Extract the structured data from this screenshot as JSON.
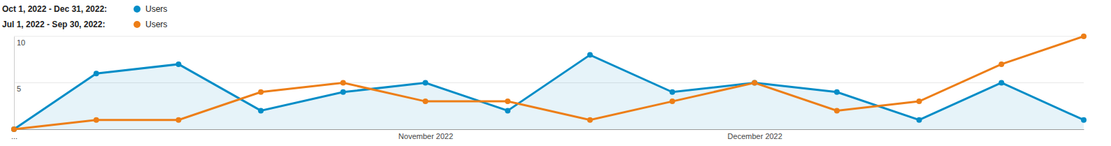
{
  "chart_data": {
    "type": "line",
    "categories": [
      "...",
      null,
      null,
      null,
      null,
      "November 2022",
      null,
      null,
      null,
      "December 2022",
      null,
      null,
      null,
      null
    ],
    "series": [
      {
        "period": "Oct 1, 2022 - Dec 31, 2022:",
        "name": "Users",
        "color": "#058dc7",
        "type": "area",
        "marker": "circle",
        "values": [
          0,
          6,
          7,
          2,
          4,
          5,
          2,
          8,
          4,
          5,
          4,
          1,
          5,
          1
        ]
      },
      {
        "period": "Jul 1, 2022 - Sep 30, 2022:",
        "name": "Users",
        "color": "#ed7e17",
        "type": "line",
        "marker": "circle",
        "values": [
          0,
          1,
          1,
          4,
          5,
          3,
          3,
          1,
          3,
          5,
          2,
          3,
          7,
          10
        ]
      }
    ],
    "ylim": [
      0,
      10
    ],
    "yticks": [
      5,
      10
    ],
    "grid": true
  }
}
